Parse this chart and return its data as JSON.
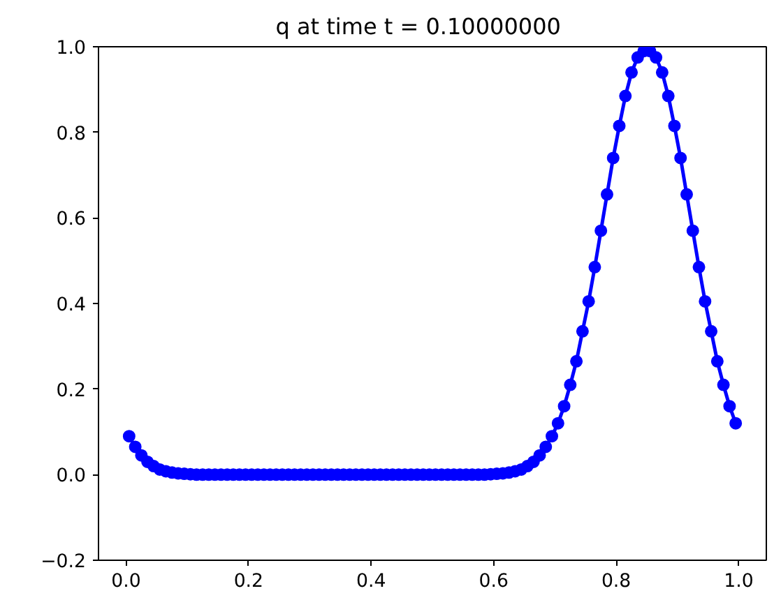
{
  "chart_data": {
    "type": "line",
    "title": "q at time t =     0.10000000",
    "x": [
      0.005,
      0.015,
      0.025,
      0.035,
      0.045,
      0.055,
      0.065,
      0.075,
      0.085,
      0.095,
      0.105,
      0.115,
      0.125,
      0.135,
      0.145,
      0.155,
      0.165,
      0.175,
      0.185,
      0.195,
      0.205,
      0.215,
      0.225,
      0.235,
      0.245,
      0.255,
      0.265,
      0.275,
      0.285,
      0.295,
      0.305,
      0.315,
      0.325,
      0.335,
      0.345,
      0.355,
      0.365,
      0.375,
      0.385,
      0.395,
      0.405,
      0.415,
      0.425,
      0.435,
      0.445,
      0.455,
      0.465,
      0.475,
      0.485,
      0.495,
      0.505,
      0.515,
      0.525,
      0.535,
      0.545,
      0.555,
      0.565,
      0.575,
      0.585,
      0.595,
      0.605,
      0.615,
      0.625,
      0.635,
      0.645,
      0.655,
      0.665,
      0.675,
      0.685,
      0.695,
      0.705,
      0.715,
      0.725,
      0.735,
      0.745,
      0.755,
      0.765,
      0.775,
      0.785,
      0.795,
      0.805,
      0.815,
      0.825,
      0.835,
      0.845,
      0.855,
      0.865,
      0.875,
      0.885,
      0.895,
      0.905,
      0.915,
      0.925,
      0.935,
      0.945,
      0.955,
      0.965,
      0.975,
      0.985,
      0.995
    ],
    "series": [
      {
        "color": "#0000ff",
        "values": [
          0.09,
          0.065,
          0.045,
          0.03,
          0.02,
          0.012,
          0.008,
          0.005,
          0.003,
          0.002,
          0.001,
          0,
          0,
          0,
          0,
          0,
          0,
          0,
          0,
          0,
          0,
          0,
          0,
          0,
          0,
          0,
          0,
          0,
          0,
          0,
          0,
          0,
          0,
          0,
          0,
          0,
          0,
          0,
          0,
          0,
          0,
          0,
          0,
          0,
          0,
          0,
          0,
          0,
          0,
          0,
          0,
          0,
          0,
          0,
          0,
          0,
          0,
          0,
          0,
          0.001,
          0.002,
          0.003,
          0.005,
          0.008,
          0.012,
          0.02,
          0.03,
          0.045,
          0.065,
          0.09,
          0.12,
          0.16,
          0.21,
          0.265,
          0.335,
          0.405,
          0.485,
          0.57,
          0.655,
          0.74,
          0.815,
          0.885,
          0.94,
          0.975,
          0.99,
          0.99,
          0.975,
          0.94,
          0.885,
          0.815,
          0.74,
          0.655,
          0.57,
          0.485,
          0.405,
          0.335,
          0.265,
          0.21,
          0.16,
          0.12
        ]
      }
    ],
    "xlim": [
      -0.045,
      1.045
    ],
    "ylim": [
      -0.2,
      1.0
    ],
    "xticks": [
      {
        "value": 0,
        "label": "0.0"
      },
      0.2,
      0.4,
      0.6,
      0.8,
      {
        "value": 1,
        "label": "1.0"
      }
    ],
    "yticks": [
      {
        "value": -0.2,
        "label": "−0.2"
      },
      {
        "value": 0,
        "label": "0.0"
      },
      0.2,
      0.4,
      0.6,
      0.8,
      {
        "value": 1,
        "label": "1.0"
      }
    ],
    "marker": "circle",
    "line_style": "solid",
    "grid": false
  }
}
